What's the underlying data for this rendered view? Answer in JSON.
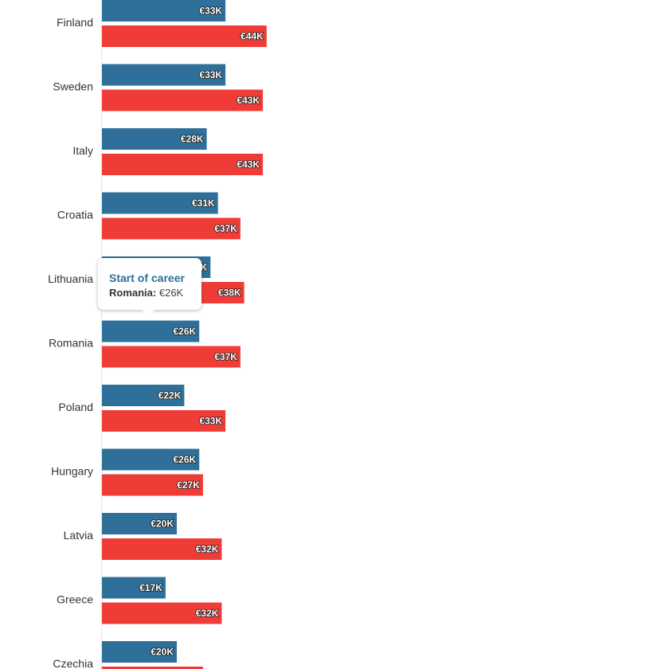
{
  "chart_data": {
    "type": "bar",
    "orientation": "horizontal",
    "categories": [
      "Finland",
      "Sweden",
      "Italy",
      "Croatia",
      "Lithuania",
      "Romania",
      "Poland",
      "Hungary",
      "Latvia",
      "Greece",
      "Czechia"
    ],
    "series": [
      {
        "name": "Start of career",
        "color": "#2e7099",
        "values": [
          33,
          33,
          28,
          31,
          29,
          26,
          22,
          26,
          20,
          17,
          20
        ],
        "labels": [
          "€33K",
          "€33K",
          "€28K",
          "€31K",
          "€29K",
          "€26K",
          "€22K",
          "€26K",
          "€20K",
          "€17K",
          "€20K"
        ]
      },
      {
        "color": "#f03c37",
        "values": [
          44,
          43,
          43,
          37,
          38,
          37,
          33,
          27,
          32,
          32,
          27
        ],
        "labels": [
          "€44K",
          "€43K",
          "€43K",
          "€37K",
          "€38K",
          "€37K",
          "€33K",
          "€27K",
          "€32K",
          "€32K",
          ""
        ]
      }
    ]
  },
  "tooltip": {
    "title": "Start of career",
    "category": "Romania:",
    "value": "€26K"
  }
}
